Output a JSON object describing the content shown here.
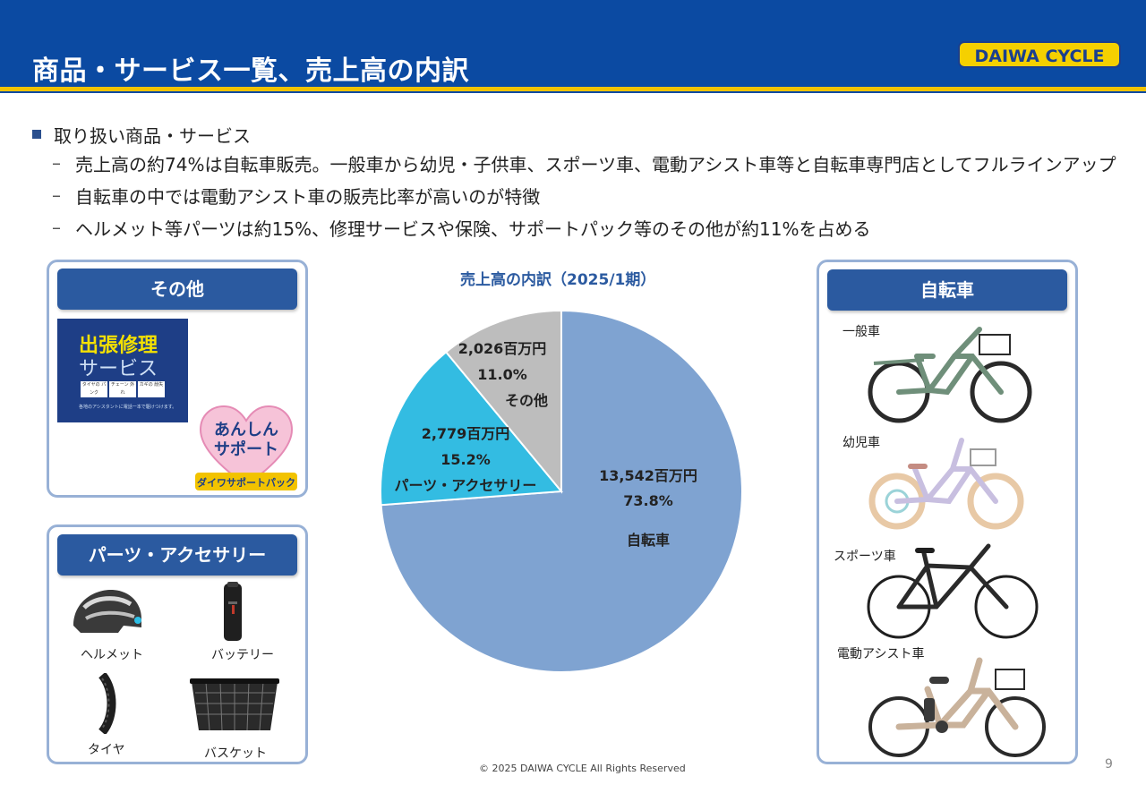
{
  "header": {
    "title": "商品・サービス一覧、売上高の内訳",
    "logo_text": "DAIWA CYCLE"
  },
  "bullets": {
    "heading": "取り扱い商品・サービス",
    "items": [
      "売上高の約74%は自転車販売。一般車から幼児・子供車、スポーツ車、電動アシスト車等と自転車専門店としてフルラインアップ",
      "自転車の中では電動アシスト車の販売比率が高いのが特徴",
      "ヘルメット等パーツは約15%、修理サービスや保険、サポートパック等のその他が約11%を占める"
    ]
  },
  "left_top": {
    "title": "その他",
    "repair_title_1": "出張修理",
    "repair_title_2": "サービス",
    "repair_tags": [
      "タイヤの パンク",
      "チェーン 外れ",
      "カギの 紛失"
    ],
    "repair_note": "各地のアシスタントに電話一本で駆けつけます。",
    "support_1": "あんしん",
    "support_2": "サポート",
    "support_sub": "ダイワサポートパック"
  },
  "left_bottom": {
    "title": "パーツ・アクセサリー",
    "items": [
      "ヘルメット",
      "バッテリー",
      "タイヤ",
      "バスケット"
    ]
  },
  "right": {
    "title": "自転車",
    "items": [
      "一般車",
      "幼児車",
      "スポーツ車",
      "電動アシスト車"
    ]
  },
  "chart_data": {
    "type": "pie",
    "title": "売上高の内訳（2025/1期）",
    "slices": [
      {
        "name": "自転車",
        "amount": "13,542百万円",
        "pct_label": "73.8%",
        "value": 73.8,
        "color": "#7fa3d1"
      },
      {
        "name": "パーツ・アクセサリー",
        "amount": "2,779百万円",
        "pct_label": "15.2%",
        "value": 15.2,
        "color": "#33bce2"
      },
      {
        "name": "その他",
        "amount": "2,026百万円",
        "pct_label": "11.0%",
        "value": 11.0,
        "color": "#bdbdbd"
      }
    ]
  },
  "footer": {
    "copyright": "© 2025 DAIWA CYCLE All Rights Reserved",
    "page": "9"
  }
}
